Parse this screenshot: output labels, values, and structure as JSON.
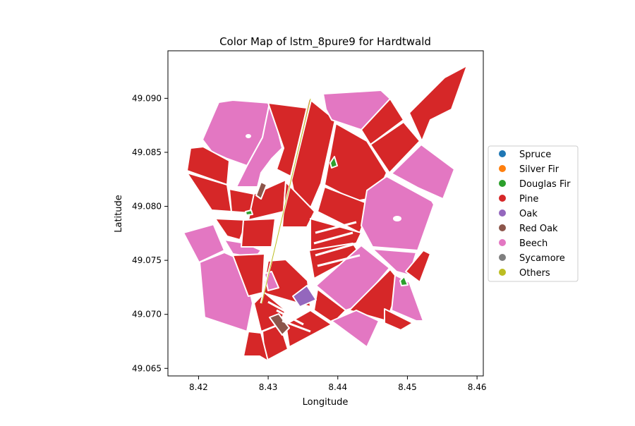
{
  "title": "Color Map of lstm_8pure9 for Hardtwald",
  "xlabel": "Longitude",
  "ylabel": "Latitude",
  "xticks": [
    "8.42",
    "8.43",
    "8.44",
    "8.45",
    "8.46"
  ],
  "yticks": [
    "49.065",
    "49.070",
    "49.075",
    "49.080",
    "49.085",
    "49.090"
  ],
  "legend": [
    {
      "label": "Spruce",
      "color": "#1f77b4"
    },
    {
      "label": "Silver Fir",
      "color": "#ff7f0e"
    },
    {
      "label": "Douglas Fir",
      "color": "#2ca02c"
    },
    {
      "label": "Pine",
      "color": "#d62728"
    },
    {
      "label": "Oak",
      "color": "#9467bd"
    },
    {
      "label": "Red Oak",
      "color": "#8c564b"
    },
    {
      "label": "Beech",
      "color": "#e377c2"
    },
    {
      "label": "Sycamore",
      "color": "#7f7f7f"
    },
    {
      "label": "Others",
      "color": "#bcbd22"
    }
  ],
  "chart_data": {
    "type": "map",
    "title": "Color Map of lstm_8pure9 for Hardtwald",
    "xlabel": "Longitude",
    "ylabel": "Latitude",
    "xlim": [
      8.4156,
      8.4609
    ],
    "ylim": [
      49.0643,
      49.0944
    ],
    "legend_position": "right",
    "classes": [
      "Spruce",
      "Silver Fir",
      "Douglas Fir",
      "Pine",
      "Oak",
      "Red Oak",
      "Beech",
      "Sycamore",
      "Others"
    ],
    "class_colors": {
      "Spruce": "#1f77b4",
      "Silver Fir": "#ff7f0e",
      "Douglas Fir": "#2ca02c",
      "Pine": "#d62728",
      "Oak": "#9467bd",
      "Red Oak": "#8c564b",
      "Beech": "#e377c2",
      "Sycamore": "#7f7f7f",
      "Others": "#bcbd22"
    },
    "dominant_classes": [
      "Pine",
      "Beech"
    ]
  }
}
